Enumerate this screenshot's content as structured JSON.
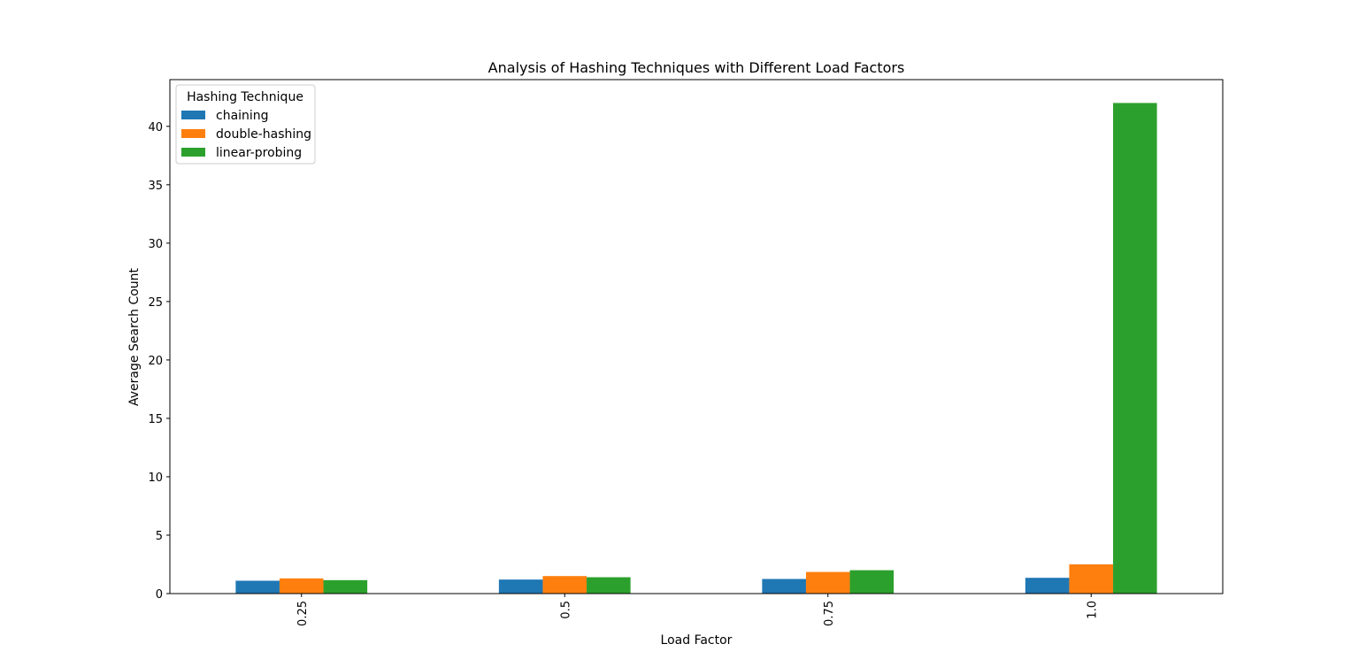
{
  "chart_data": {
    "type": "bar",
    "title": "Analysis of Hashing Techniques with Different Load Factors",
    "xlabel": "Load Factor",
    "ylabel": "Average Search Count",
    "categories": [
      "0.25",
      "0.5",
      "0.75",
      "1.0"
    ],
    "ylim": [
      0,
      44
    ],
    "yticks": [
      0,
      5,
      10,
      15,
      20,
      25,
      30,
      35,
      40
    ],
    "grid": false,
    "legend": {
      "title": "Hashing Technique",
      "placement": "top-left"
    },
    "series": [
      {
        "name": "chaining",
        "color": "#1f77b4",
        "values": [
          1.1,
          1.2,
          1.25,
          1.35
        ]
      },
      {
        "name": "double-hashing",
        "color": "#ff7f0e",
        "values": [
          1.3,
          1.5,
          1.85,
          2.5
        ]
      },
      {
        "name": "linear-probing",
        "color": "#2ca02c",
        "values": [
          1.15,
          1.4,
          2.0,
          42.0
        ]
      }
    ]
  }
}
